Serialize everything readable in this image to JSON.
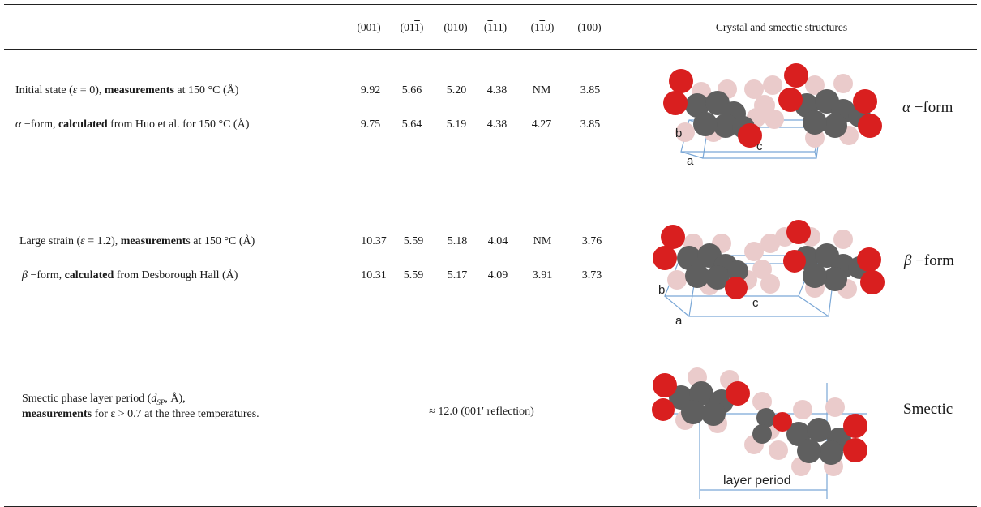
{
  "columns": {
    "h001": "(001)",
    "h011": {
      "pre": "(01",
      "bar": "1",
      "post": ")"
    },
    "h010": "(010)",
    "h111": {
      "pre": "(",
      "bar": "1",
      "post": "11)"
    },
    "h110": {
      "pre": "(1",
      "bar": "1",
      "post": "0)"
    },
    "h100": "(100)",
    "structures": "Crystal and smectic structures"
  },
  "rows": [
    {
      "label": {
        "a": "Initial state (",
        "eps": "ε",
        "b": " = 0), ",
        "bold": "measurements",
        "c": " at 150 °C (Å)"
      },
      "values": [
        "9.92",
        "5.66",
        "5.20",
        "4.38",
        "NM",
        "3.85"
      ]
    },
    {
      "label": {
        "greek": "α",
        "a": " −form, ",
        "bold": "calculated",
        "b": " from Huo et al. for 150 °C (Å)"
      },
      "values": [
        "9.75",
        "5.64",
        "5.19",
        "4.38",
        "4.27",
        "3.85"
      ]
    },
    {
      "label": {
        "a": "Large strain (",
        "eps": "ε",
        "b": " = 1.2), ",
        "bold": "measurement",
        "c": "s at 150 °C (Å)"
      },
      "values": [
        "10.37",
        "5.59",
        "5.18",
        "4.04",
        "NM",
        "3.76"
      ]
    },
    {
      "label": {
        "greek": "β",
        "a": " −form, ",
        "bold": "calculated",
        "b": " from Desborough Hall (Å)"
      },
      "values": [
        "10.31",
        "5.59",
        "5.17",
        "4.09",
        "3.91",
        "3.73"
      ]
    }
  ],
  "smectic": {
    "line1_a": "Smectic phase layer period (",
    "line1_d": "d",
    "line1_sub": "SP",
    "line1_b": ", Å),",
    "line2_bold": "measurements",
    "line2_rest": " for ε > 0.7 at the three temperatures.",
    "value": "≈ 12.0 (001′ reflection)"
  },
  "structures": {
    "alpha": {
      "greek": "α",
      "rest": " −form",
      "axis_a": "a",
      "axis_b": "b",
      "axis_c": "c"
    },
    "beta": {
      "greek": "β",
      "rest": " −form",
      "axis_a": "a",
      "axis_b": "b",
      "axis_c": "c"
    },
    "smectic": {
      "label": "Smectic",
      "layer": "layer period"
    }
  },
  "colors": {
    "oxygen": "#d91f1f",
    "carbon": "#5f5f5f",
    "hydrogen": "#eacbcb",
    "cell": "#7aa7d6"
  }
}
